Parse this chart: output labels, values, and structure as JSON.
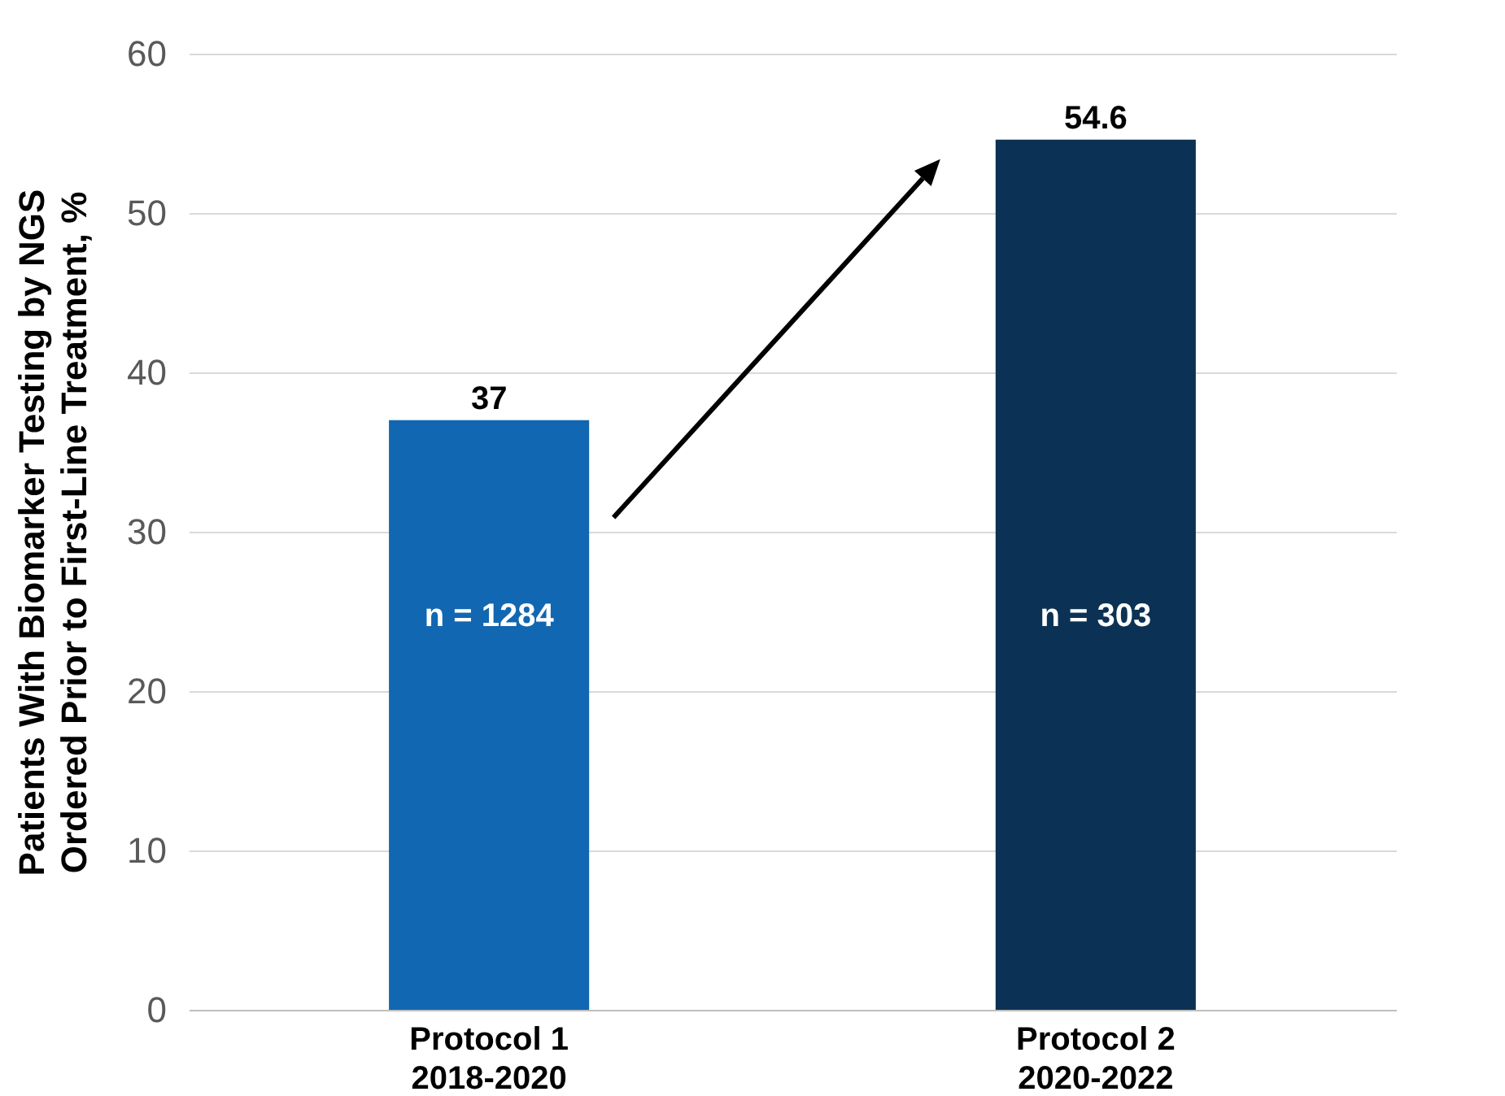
{
  "chart_data": {
    "type": "bar",
    "ylabel": "Patients With Biomarker Testing by NGS\nOrdered Prior to First-Line Treatment, %",
    "categories": [
      "Protocol 1\n2018-2020",
      "Protocol 2\n2020-2022"
    ],
    "values": [
      37,
      54.6
    ],
    "colors": [
      "#1167b1",
      "#0b3254"
    ],
    "ylim": [
      0,
      60
    ],
    "yticks": [
      0,
      10,
      20,
      30,
      40,
      50,
      60
    ],
    "grid": "y",
    "data_labels": true,
    "annotations": [
      "n = 1284",
      "n = 303"
    ]
  }
}
